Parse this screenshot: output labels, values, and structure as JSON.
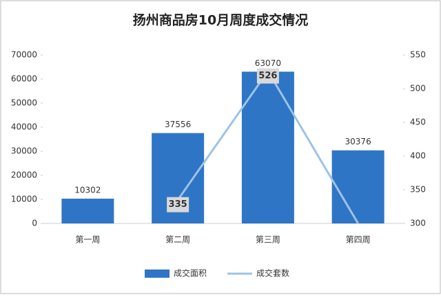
{
  "chart_data": {
    "type": "bar-line",
    "title": "扬州商品房10月周度成交情况",
    "categories": [
      "第一周",
      "第二周",
      "第三周",
      "第四周"
    ],
    "series": [
      {
        "name": "成交面积",
        "type": "bar",
        "color": "#2e75c6",
        "values": [
          10302,
          37556,
          63070,
          30376
        ]
      },
      {
        "name": "成交套数",
        "type": "line",
        "axis": "y2",
        "color": "#9dc3e6",
        "values": [
          null,
          335,
          526,
          300
        ],
        "labeled": [
          false,
          true,
          true,
          false
        ]
      }
    ],
    "ylim": [
      0,
      70000
    ],
    "yticks": [
      0,
      10000,
      20000,
      30000,
      40000,
      50000,
      60000,
      70000
    ],
    "y2lim": [
      300,
      550
    ],
    "y2ticks": [
      300,
      350,
      400,
      450,
      500,
      550
    ],
    "grid": false,
    "legend": "bottom"
  }
}
